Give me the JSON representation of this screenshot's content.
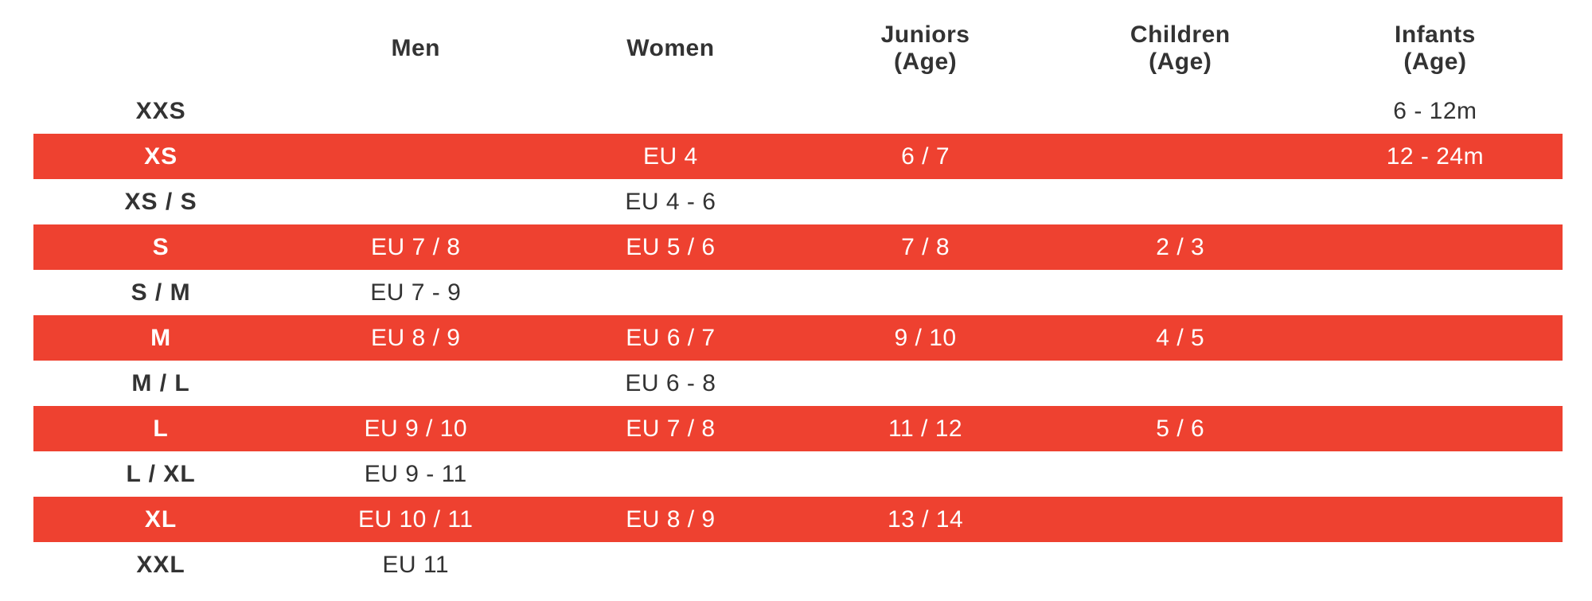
{
  "table": {
    "size_column_header": "",
    "columns": [
      {
        "label": "Men",
        "sublabel": ""
      },
      {
        "label": "Women",
        "sublabel": ""
      },
      {
        "label": "Juniors",
        "sublabel": "(Age)"
      },
      {
        "label": "Children",
        "sublabel": "(Age)"
      },
      {
        "label": "Infants",
        "sublabel": "(Age)"
      }
    ],
    "rows": [
      {
        "size": "XXS",
        "highlight": false,
        "men": "",
        "women": "",
        "juniors": "",
        "children": "",
        "infants": "6 - 12m"
      },
      {
        "size": "XS",
        "highlight": true,
        "men": "",
        "women": "EU 4",
        "juniors": "6 / 7",
        "children": "",
        "infants": "12 - 24m"
      },
      {
        "size": "XS / S",
        "highlight": false,
        "men": "",
        "women": "EU 4 - 6",
        "juniors": "",
        "children": "",
        "infants": ""
      },
      {
        "size": "S",
        "highlight": true,
        "men": "EU 7 / 8",
        "women": "EU 5 / 6",
        "juniors": "7 / 8",
        "children": "2 / 3",
        "infants": ""
      },
      {
        "size": "S / M",
        "highlight": false,
        "men": "EU 7 - 9",
        "women": "",
        "juniors": "",
        "children": "",
        "infants": ""
      },
      {
        "size": "M",
        "highlight": true,
        "men": "EU 8 / 9",
        "women": "EU 6 / 7",
        "juniors": "9 / 10",
        "children": "4 / 5",
        "infants": ""
      },
      {
        "size": "M / L",
        "highlight": false,
        "men": "",
        "women": "EU 6 - 8",
        "juniors": "",
        "children": "",
        "infants": ""
      },
      {
        "size": "L",
        "highlight": true,
        "men": "EU 9 / 10",
        "women": "EU 7 / 8",
        "juniors": "11 / 12",
        "children": "5 / 6",
        "infants": ""
      },
      {
        "size": "L / XL",
        "highlight": false,
        "men": "EU 9 - 11",
        "women": "",
        "juniors": "",
        "children": "",
        "infants": ""
      },
      {
        "size": "XL",
        "highlight": true,
        "men": "EU 10 / 11",
        "women": "EU 8 / 9",
        "juniors": "13 / 14",
        "children": "",
        "infants": ""
      },
      {
        "size": "XXL",
        "highlight": false,
        "men": "EU 11",
        "women": "",
        "juniors": "",
        "children": "",
        "infants": ""
      }
    ]
  },
  "colors": {
    "highlight_row_background": "#EE4130",
    "highlight_row_text": "#FFFFFF",
    "default_text": "#333333"
  }
}
